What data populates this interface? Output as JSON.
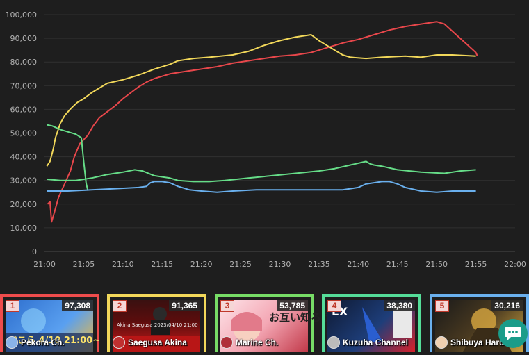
{
  "chart_data": {
    "type": "line",
    "xlabel": "",
    "ylabel": "",
    "y_ticks": [
      "100,000",
      "90,000",
      "80,000",
      "70,000",
      "60,000",
      "50,000",
      "40,000",
      "30,000",
      "20,000",
      "10,000",
      "0"
    ],
    "x_ticks": [
      "21:00",
      "21:05",
      "21:10",
      "21:15",
      "21:20",
      "21:25",
      "21:30",
      "21:35",
      "21:40",
      "21:45",
      "21:50",
      "21:55",
      "22:00"
    ],
    "ylim": [
      0,
      100000
    ],
    "xlim_minutes": [
      0,
      60
    ],
    "grid": true,
    "series": [
      {
        "color": "#e8474b",
        "points": [
          [
            0.4,
            20000
          ],
          [
            0.7,
            21000
          ],
          [
            0.9,
            12500
          ],
          [
            1.3,
            17000
          ],
          [
            1.8,
            23000
          ],
          [
            2.5,
            28000
          ],
          [
            3.3,
            34000
          ],
          [
            3.8,
            40000
          ],
          [
            4.5,
            45500
          ],
          [
            5.5,
            49000
          ],
          [
            6.2,
            53000
          ],
          [
            7,
            56500
          ],
          [
            8,
            59000
          ],
          [
            9,
            61500
          ],
          [
            10,
            64500
          ],
          [
            11,
            67000
          ],
          [
            12,
            69500
          ],
          [
            13,
            71500
          ],
          [
            14,
            73000
          ],
          [
            15,
            74000
          ],
          [
            16,
            75000
          ],
          [
            17,
            75500
          ],
          [
            18,
            76000
          ],
          [
            20,
            77000
          ],
          [
            22,
            78000
          ],
          [
            24,
            79500
          ],
          [
            26,
            80500
          ],
          [
            28,
            81500
          ],
          [
            30,
            82500
          ],
          [
            32,
            83000
          ],
          [
            34,
            84000
          ],
          [
            36,
            86000
          ],
          [
            38,
            88000
          ],
          [
            40,
            89500
          ],
          [
            42,
            91500
          ],
          [
            44,
            93500
          ],
          [
            46,
            95000
          ],
          [
            48,
            96000
          ],
          [
            50,
            97000
          ],
          [
            51,
            96000
          ],
          [
            52,
            93000
          ],
          [
            53,
            90000
          ],
          [
            54,
            87000
          ],
          [
            55,
            84000
          ],
          [
            55.2,
            82500
          ]
        ]
      },
      {
        "color": "#f2d85a",
        "points": [
          [
            0.3,
            36000
          ],
          [
            0.7,
            38000
          ],
          [
            1.1,
            43000
          ],
          [
            1.4,
            48000
          ],
          [
            2.0,
            54000
          ],
          [
            2.6,
            57500
          ],
          [
            3.4,
            60500
          ],
          [
            4.2,
            63000
          ],
          [
            5,
            64500
          ],
          [
            6,
            67000
          ],
          [
            7,
            69000
          ],
          [
            8,
            71000
          ],
          [
            10,
            72500
          ],
          [
            12,
            74500
          ],
          [
            14,
            77000
          ],
          [
            16,
            79000
          ],
          [
            17,
            80500
          ],
          [
            19,
            81500
          ],
          [
            21,
            82000
          ],
          [
            24,
            83000
          ],
          [
            26,
            84500
          ],
          [
            28,
            87000
          ],
          [
            30,
            89000
          ],
          [
            32,
            90500
          ],
          [
            34,
            91500
          ],
          [
            35,
            89000
          ],
          [
            36,
            87000
          ],
          [
            37,
            85000
          ],
          [
            38,
            83000
          ],
          [
            39,
            82000
          ],
          [
            41,
            81500
          ],
          [
            43,
            82000
          ],
          [
            46,
            82500
          ],
          [
            48,
            82000
          ],
          [
            50,
            83000
          ],
          [
            52,
            83000
          ],
          [
            55,
            82500
          ]
        ]
      },
      {
        "color": "#66dd88",
        "points": [
          [
            0.3,
            53500
          ],
          [
            1.0,
            53000
          ],
          [
            2,
            51500
          ],
          [
            3,
            50500
          ],
          [
            4,
            49500
          ],
          [
            4.7,
            48000
          ],
          [
            5.0,
            38000
          ],
          [
            5.3,
            29000
          ],
          [
            5.5,
            26000
          ]
        ]
      },
      {
        "color": "#66dd88",
        "points": [
          [
            0.3,
            30500
          ],
          [
            2,
            30000
          ],
          [
            4,
            30000
          ],
          [
            6,
            31000
          ],
          [
            8,
            32500
          ],
          [
            10,
            33500
          ],
          [
            11.5,
            34500
          ],
          [
            12.5,
            34000
          ],
          [
            14,
            32000
          ],
          [
            16,
            31000
          ],
          [
            17,
            30000
          ],
          [
            19,
            29500
          ],
          [
            21,
            29500
          ],
          [
            23,
            30000
          ],
          [
            26,
            31000
          ],
          [
            29,
            32000
          ],
          [
            32,
            33000
          ],
          [
            35,
            34000
          ],
          [
            37,
            35000
          ],
          [
            39,
            36500
          ],
          [
            41,
            38000
          ],
          [
            41.5,
            37000
          ],
          [
            42,
            36500
          ],
          [
            43,
            36000
          ],
          [
            45,
            34500
          ],
          [
            48,
            33500
          ],
          [
            51,
            33000
          ],
          [
            53,
            34000
          ],
          [
            55,
            34500
          ]
        ]
      },
      {
        "color": "#6ab0ee",
        "points": [
          [
            0.3,
            25500
          ],
          [
            3,
            25500
          ],
          [
            6,
            26000
          ],
          [
            9,
            26500
          ],
          [
            12,
            27000
          ],
          [
            13,
            27500
          ],
          [
            13.5,
            29000
          ],
          [
            14,
            29500
          ],
          [
            15,
            29500
          ],
          [
            16,
            29000
          ],
          [
            17,
            27500
          ],
          [
            18.5,
            26000
          ],
          [
            20,
            25500
          ],
          [
            22,
            25000
          ],
          [
            24,
            25500
          ],
          [
            27,
            26000
          ],
          [
            30,
            26000
          ],
          [
            33,
            26000
          ],
          [
            36,
            26000
          ],
          [
            38,
            26000
          ],
          [
            40,
            27000
          ],
          [
            41,
            28500
          ],
          [
            42,
            29000
          ],
          [
            43,
            29500
          ],
          [
            44,
            29500
          ],
          [
            45,
            28500
          ],
          [
            46,
            27000
          ],
          [
            48,
            25500
          ],
          [
            50,
            25000
          ],
          [
            52,
            25500
          ],
          [
            55,
            25500
          ]
        ]
      }
    ]
  },
  "cards": [
    {
      "rank": "1",
      "count": "97,308",
      "channel": "Pekora Ch.",
      "border": "#ee4c4c",
      "thumb_text": "ぺこら 4/10 21:00~",
      "bg": "#3f7fd6"
    },
    {
      "rank": "2",
      "count": "91,365",
      "channel": "Saegusa Akina",
      "border": "#f2d85a",
      "thumb_text": "Akina Saegusa 2023/04/10 21:00",
      "bg": "#2a1010"
    },
    {
      "rank": "3",
      "count": "53,785",
      "channel": "Marine Ch.",
      "border": "#77dd66",
      "thumb_text": "お互い知ろう",
      "bg": "#f1c9d0"
    },
    {
      "rank": "4",
      "count": "38,380",
      "channel": "Kuzuha Channel",
      "border": "#55dd99",
      "thumb_text": "EX",
      "bg": "#1d2a4a"
    },
    {
      "rank": "5",
      "count": "30,216",
      "channel": "Shibuya Haru",
      "border": "#6ab0ee",
      "thumb_text": "",
      "bg": "#2b2720"
    }
  ]
}
